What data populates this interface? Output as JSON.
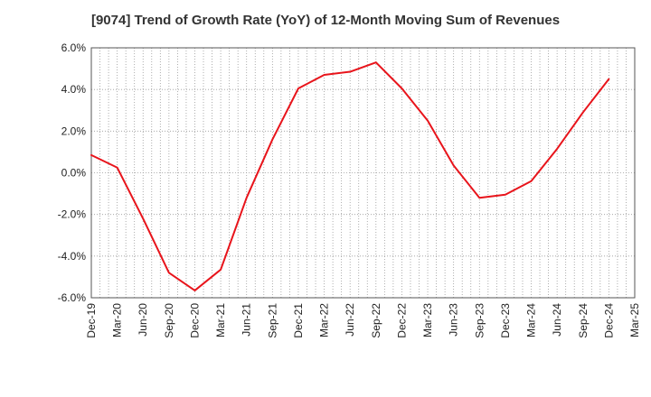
{
  "chart_data": {
    "type": "line",
    "title": "[9074]  Trend of Growth Rate (YoY) of 12-Month Moving Sum of Revenues",
    "xlabel": "",
    "ylabel": "",
    "ylim": [
      -6.0,
      6.0
    ],
    "yticks": [
      6.0,
      4.0,
      2.0,
      0.0,
      -2.0,
      -4.0,
      -6.0
    ],
    "ytick_labels": [
      "6.0%",
      "4.0%",
      "2.0%",
      "0.0%",
      "-2.0%",
      "-4.0%",
      "-6.0%"
    ],
    "categories": [
      "Dec-19",
      "Mar-20",
      "Jun-20",
      "Sep-20",
      "Dec-20",
      "Mar-21",
      "Jun-21",
      "Sep-21",
      "Dec-21",
      "Mar-22",
      "Jun-22",
      "Sep-22",
      "Dec-22",
      "Mar-23",
      "Jun-23",
      "Sep-23",
      "Dec-23",
      "Mar-24",
      "Jun-24",
      "Sep-24",
      "Dec-24",
      "Mar-25"
    ],
    "series": [
      {
        "color": "#e8141b",
        "values": [
          0.85,
          0.25,
          -2.2,
          -4.8,
          -5.65,
          -4.65,
          -1.2,
          1.6,
          4.05,
          4.7,
          4.85,
          5.3,
          4.05,
          2.5,
          0.35,
          -1.2,
          -1.05,
          -0.4,
          1.15,
          2.9,
          4.5,
          null
        ]
      }
    ],
    "grid": true,
    "legend": "none"
  }
}
